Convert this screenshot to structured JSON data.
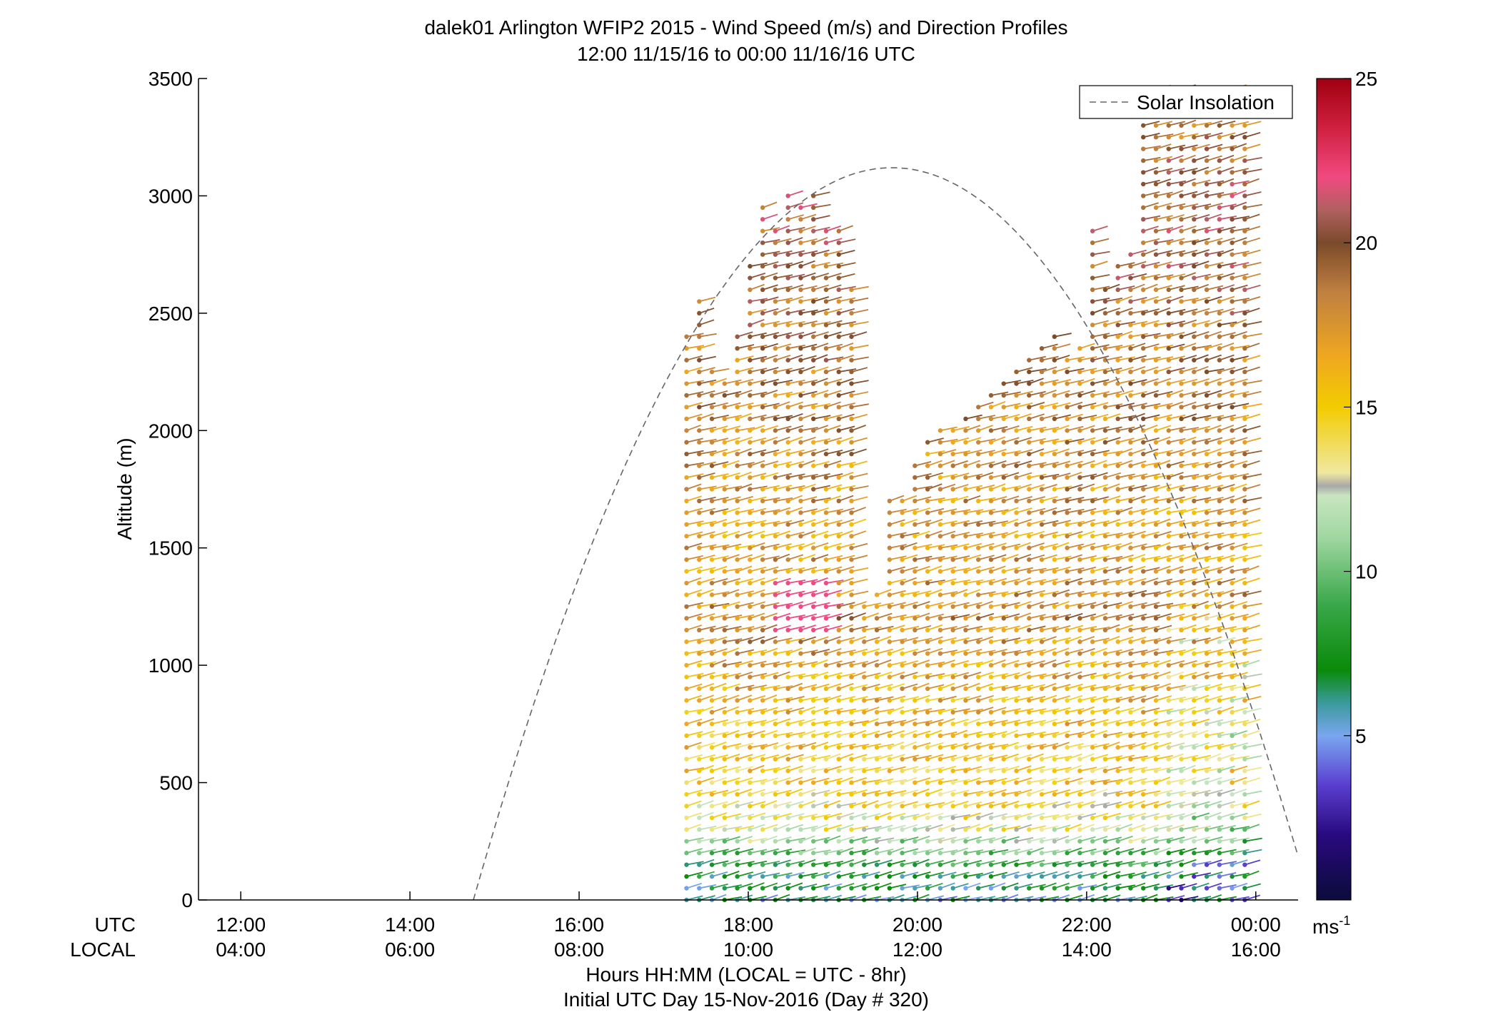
{
  "chart_data": {
    "type": "scatter",
    "title": "dalek01 Arlington WFIP2 2015 - Wind Speed (m/s) and Direction Profiles",
    "subtitle": "12:00 11/15/16 to 00:00 11/16/16  UTC",
    "ylabel": "Altitude (m)",
    "ylim": [
      0,
      3500
    ],
    "yticks": [
      "0",
      "500",
      "1000",
      "1500",
      "2000",
      "2500",
      "3000",
      "3500"
    ],
    "xlim_hours_utc": [
      11.5,
      24.5
    ],
    "xticks_utc": [
      "12:00",
      "14:00",
      "16:00",
      "18:00",
      "20:00",
      "22:00",
      "00:00"
    ],
    "xticks_local": [
      "04:00",
      "06:00",
      "08:00",
      "10:00",
      "12:00",
      "14:00",
      "16:00"
    ],
    "xrow_label_utc": "UTC",
    "xrow_label_local": "LOCAL",
    "xlabel_line1": "Hours HH:MM  (LOCAL = UTC - 8hr)",
    "xlabel_line2": "Initial UTC Day 15-Nov-2016 (Day # 320)",
    "legend": {
      "label": "Solar Insolation",
      "style": "dashed",
      "color": "#666666",
      "placement": "top-right"
    },
    "colorbar": {
      "min": 0,
      "max": 25,
      "ticks": [
        "5",
        "10",
        "15",
        "20",
        "25"
      ],
      "unit_label": "ms",
      "unit_exponent": "-1",
      "stops": [
        {
          "v": 0,
          "c": "#0b0b3b"
        },
        {
          "v": 2,
          "c": "#2a0a80"
        },
        {
          "v": 3.5,
          "c": "#5a3fd0"
        },
        {
          "v": 5,
          "c": "#7aa6f0"
        },
        {
          "v": 6,
          "c": "#3a9a9a"
        },
        {
          "v": 7,
          "c": "#0a8a0a"
        },
        {
          "v": 9,
          "c": "#3aa84a"
        },
        {
          "v": 11,
          "c": "#9fd6a0"
        },
        {
          "v": 12.3,
          "c": "#c8e6c0"
        },
        {
          "v": 12.6,
          "c": "#a8a8a8"
        },
        {
          "v": 13,
          "c": "#f0e8a0"
        },
        {
          "v": 15,
          "c": "#f2cc00"
        },
        {
          "v": 16.5,
          "c": "#f0a820"
        },
        {
          "v": 18.5,
          "c": "#c08040"
        },
        {
          "v": 20,
          "c": "#7a4a2a"
        },
        {
          "v": 21,
          "c": "#b06060"
        },
        {
          "v": 22,
          "c": "#f04a80"
        },
        {
          "v": 23.5,
          "c": "#d02040"
        },
        {
          "v": 25,
          "c": "#a00010"
        }
      ]
    },
    "solar_insolation_curve": {
      "start_hour_utc": 14.75,
      "end_hour_utc": 24.5,
      "peak_hour_utc": 19.7,
      "peak_altitude_equiv": 3120
    },
    "profiles": {
      "altitude_step_m": 50,
      "wind_direction_deg_approx": 240,
      "columns": [
        {
          "hour": 17.27,
          "top": 2400
        },
        {
          "hour": 17.42,
          "top": 2550
        },
        {
          "hour": 17.57,
          "top": 2280
        },
        {
          "hour": 17.72,
          "top": 2220
        },
        {
          "hour": 17.87,
          "top": 2440
        },
        {
          "hour": 18.02,
          "top": 2700
        },
        {
          "hour": 18.17,
          "top": 2950
        },
        {
          "hour": 18.32,
          "top": 2850
        },
        {
          "hour": 18.47,
          "top": 3030
        },
        {
          "hour": 18.62,
          "top": 2960
        },
        {
          "hour": 18.77,
          "top": 3020
        },
        {
          "hour": 18.92,
          "top": 2880
        },
        {
          "hour": 19.07,
          "top": 2880
        },
        {
          "hour": 19.22,
          "top": 2600
        },
        {
          "hour": 19.37,
          "top": 1280
        },
        {
          "hour": 19.52,
          "top": 1320
        },
        {
          "hour": 19.67,
          "top": 1700
        },
        {
          "hour": 19.82,
          "top": 1720
        },
        {
          "hour": 19.97,
          "top": 1890
        },
        {
          "hour": 20.12,
          "top": 1980
        },
        {
          "hour": 20.27,
          "top": 2020
        },
        {
          "hour": 20.42,
          "top": 2000
        },
        {
          "hour": 20.57,
          "top": 2050
        },
        {
          "hour": 20.72,
          "top": 2100
        },
        {
          "hour": 20.87,
          "top": 2150
        },
        {
          "hour": 21.02,
          "top": 2200
        },
        {
          "hour": 21.17,
          "top": 2250
        },
        {
          "hour": 21.32,
          "top": 2310
        },
        {
          "hour": 21.47,
          "top": 2390
        },
        {
          "hour": 21.62,
          "top": 2400
        },
        {
          "hour": 21.77,
          "top": 2330
        },
        {
          "hour": 21.92,
          "top": 2350
        },
        {
          "hour": 22.07,
          "top": 2850
        },
        {
          "hour": 22.22,
          "top": 2600
        },
        {
          "hour": 22.37,
          "top": 2700
        },
        {
          "hour": 22.52,
          "top": 2750
        },
        {
          "hour": 22.67,
          "top": 3350
        },
        {
          "hour": 22.82,
          "top": 3450
        },
        {
          "hour": 22.97,
          "top": 3420
        },
        {
          "hour": 23.12,
          "top": 3460
        },
        {
          "hour": 23.27,
          "top": 3450
        },
        {
          "hour": 23.42,
          "top": 3460
        },
        {
          "hour": 23.57,
          "top": 3450
        },
        {
          "hour": 23.72,
          "top": 3470
        },
        {
          "hour": 23.87,
          "top": 3460
        }
      ],
      "speed_by_altitude": [
        {
          "z": 0,
          "v": 6
        },
        {
          "z": 150,
          "v": 8
        },
        {
          "z": 300,
          "v": 13
        },
        {
          "z": 500,
          "v": 15
        },
        {
          "z": 800,
          "v": 16
        },
        {
          "z": 1000,
          "v": 17
        },
        {
          "z": 1200,
          "v": 18
        },
        {
          "z": 1500,
          "v": 17
        },
        {
          "z": 2000,
          "v": 18
        },
        {
          "z": 2500,
          "v": 19
        },
        {
          "z": 3000,
          "v": 20
        },
        {
          "z": 3500,
          "v": 18
        }
      ]
    }
  }
}
